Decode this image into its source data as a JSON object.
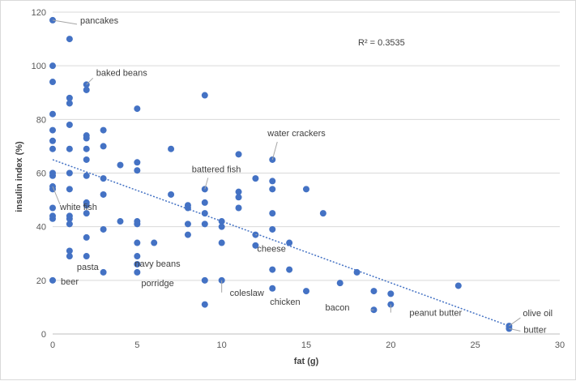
{
  "chart_data": {
    "type": "scatter",
    "xlabel": "fat (g)",
    "ylabel": "insulin index (%)",
    "xlim": [
      0,
      30
    ],
    "ylim": [
      0,
      120
    ],
    "xticks": [
      0,
      5,
      10,
      15,
      20,
      25,
      30
    ],
    "yticks": [
      0,
      20,
      40,
      60,
      80,
      100,
      120
    ],
    "grid": "horizontal",
    "point_color": "#4472C4",
    "trendline_color": "#4472C4",
    "r_squared_label": "R² = 0.3535",
    "trendline": {
      "x": [
        0,
        27
      ],
      "y": [
        65,
        3
      ]
    },
    "points": [
      {
        "x": 0,
        "y": 117
      },
      {
        "x": 1,
        "y": 110
      },
      {
        "x": 0,
        "y": 100
      },
      {
        "x": 0,
        "y": 94
      },
      {
        "x": 2,
        "y": 93
      },
      {
        "x": 2,
        "y": 91
      },
      {
        "x": 9,
        "y": 89
      },
      {
        "x": 1,
        "y": 88
      },
      {
        "x": 1,
        "y": 86
      },
      {
        "x": 5,
        "y": 84
      },
      {
        "x": 0,
        "y": 82
      },
      {
        "x": 1,
        "y": 78
      },
      {
        "x": 0,
        "y": 76
      },
      {
        "x": 3,
        "y": 76
      },
      {
        "x": 2,
        "y": 74
      },
      {
        "x": 2,
        "y": 73
      },
      {
        "x": 0,
        "y": 72
      },
      {
        "x": 3,
        "y": 70
      },
      {
        "x": 0,
        "y": 69
      },
      {
        "x": 1,
        "y": 69
      },
      {
        "x": 2,
        "y": 69
      },
      {
        "x": 7,
        "y": 69
      },
      {
        "x": 11,
        "y": 67
      },
      {
        "x": 2,
        "y": 65
      },
      {
        "x": 13,
        "y": 65
      },
      {
        "x": 5,
        "y": 64
      },
      {
        "x": 4,
        "y": 63
      },
      {
        "x": 5,
        "y": 61
      },
      {
        "x": 0,
        "y": 60
      },
      {
        "x": 1,
        "y": 60
      },
      {
        "x": 0,
        "y": 59
      },
      {
        "x": 2,
        "y": 59
      },
      {
        "x": 3,
        "y": 58
      },
      {
        "x": 12,
        "y": 58
      },
      {
        "x": 13,
        "y": 57
      },
      {
        "x": 0,
        "y": 55
      },
      {
        "x": 0,
        "y": 54
      },
      {
        "x": 1,
        "y": 54
      },
      {
        "x": 9,
        "y": 54
      },
      {
        "x": 13,
        "y": 54
      },
      {
        "x": 15,
        "y": 54
      },
      {
        "x": 11,
        "y": 53
      },
      {
        "x": 3,
        "y": 52
      },
      {
        "x": 7,
        "y": 52
      },
      {
        "x": 11,
        "y": 51
      },
      {
        "x": 2,
        "y": 49
      },
      {
        "x": 9,
        "y": 49
      },
      {
        "x": 2,
        "y": 48
      },
      {
        "x": 8,
        "y": 48
      },
      {
        "x": 0,
        "y": 47
      },
      {
        "x": 8,
        "y": 47
      },
      {
        "x": 11,
        "y": 47
      },
      {
        "x": 2,
        "y": 45
      },
      {
        "x": 9,
        "y": 45
      },
      {
        "x": 13,
        "y": 45
      },
      {
        "x": 16,
        "y": 45
      },
      {
        "x": 0,
        "y": 44
      },
      {
        "x": 1,
        "y": 44
      },
      {
        "x": 0,
        "y": 43
      },
      {
        "x": 1,
        "y": 43
      },
      {
        "x": 4,
        "y": 42
      },
      {
        "x": 5,
        "y": 42
      },
      {
        "x": 10,
        "y": 42
      },
      {
        "x": 1,
        "y": 41
      },
      {
        "x": 5,
        "y": 41
      },
      {
        "x": 8,
        "y": 41
      },
      {
        "x": 9,
        "y": 41
      },
      {
        "x": 10,
        "y": 40
      },
      {
        "x": 3,
        "y": 39
      },
      {
        "x": 13,
        "y": 39
      },
      {
        "x": 8,
        "y": 37
      },
      {
        "x": 12,
        "y": 37
      },
      {
        "x": 2,
        "y": 36
      },
      {
        "x": 5,
        "y": 34
      },
      {
        "x": 6,
        "y": 34
      },
      {
        "x": 10,
        "y": 34
      },
      {
        "x": 14,
        "y": 34
      },
      {
        "x": 12,
        "y": 33
      },
      {
        "x": 1,
        "y": 31
      },
      {
        "x": 1,
        "y": 29
      },
      {
        "x": 2,
        "y": 29
      },
      {
        "x": 5,
        "y": 29
      },
      {
        "x": 5,
        "y": 26
      },
      {
        "x": 13,
        "y": 24
      },
      {
        "x": 14,
        "y": 24
      },
      {
        "x": 3,
        "y": 23
      },
      {
        "x": 5,
        "y": 23
      },
      {
        "x": 18,
        "y": 23
      },
      {
        "x": 0,
        "y": 20
      },
      {
        "x": 9,
        "y": 20
      },
      {
        "x": 10,
        "y": 20
      },
      {
        "x": 17,
        "y": 19
      },
      {
        "x": 24,
        "y": 18
      },
      {
        "x": 13,
        "y": 17
      },
      {
        "x": 15,
        "y": 16
      },
      {
        "x": 19,
        "y": 16
      },
      {
        "x": 20,
        "y": 15
      },
      {
        "x": 9,
        "y": 11
      },
      {
        "x": 20,
        "y": 11
      },
      {
        "x": 19,
        "y": 9
      },
      {
        "x": 27,
        "y": 3
      },
      {
        "x": 27,
        "y": 2
      }
    ],
    "annotations": [
      {
        "text": "pancakes",
        "x": 0,
        "y": 117
      },
      {
        "text": "baked beans",
        "x": 2,
        "y": 93
      },
      {
        "text": "water crackers",
        "x": 13,
        "y": 65
      },
      {
        "text": "battered fish",
        "x": 9,
        "y": 54
      },
      {
        "text": "white fish",
        "x": 0,
        "y": 55
      },
      {
        "text": "cheese",
        "x": 12,
        "y": 37
      },
      {
        "text": "navy beans",
        "x": 5,
        "y": 29
      },
      {
        "text": "pasta",
        "x": 1,
        "y": 29
      },
      {
        "text": "porridge",
        "x": 5,
        "y": 23
      },
      {
        "text": "beer",
        "x": 0,
        "y": 20
      },
      {
        "text": "coleslaw",
        "x": 10,
        "y": 20
      },
      {
        "text": "chicken",
        "x": 13,
        "y": 17
      },
      {
        "text": "bacon",
        "x": 19,
        "y": 9
      },
      {
        "text": "peanut butter",
        "x": 20,
        "y": 11
      },
      {
        "text": "olive oil",
        "x": 27,
        "y": 3
      },
      {
        "text": "butter",
        "x": 27,
        "y": 2
      }
    ]
  }
}
